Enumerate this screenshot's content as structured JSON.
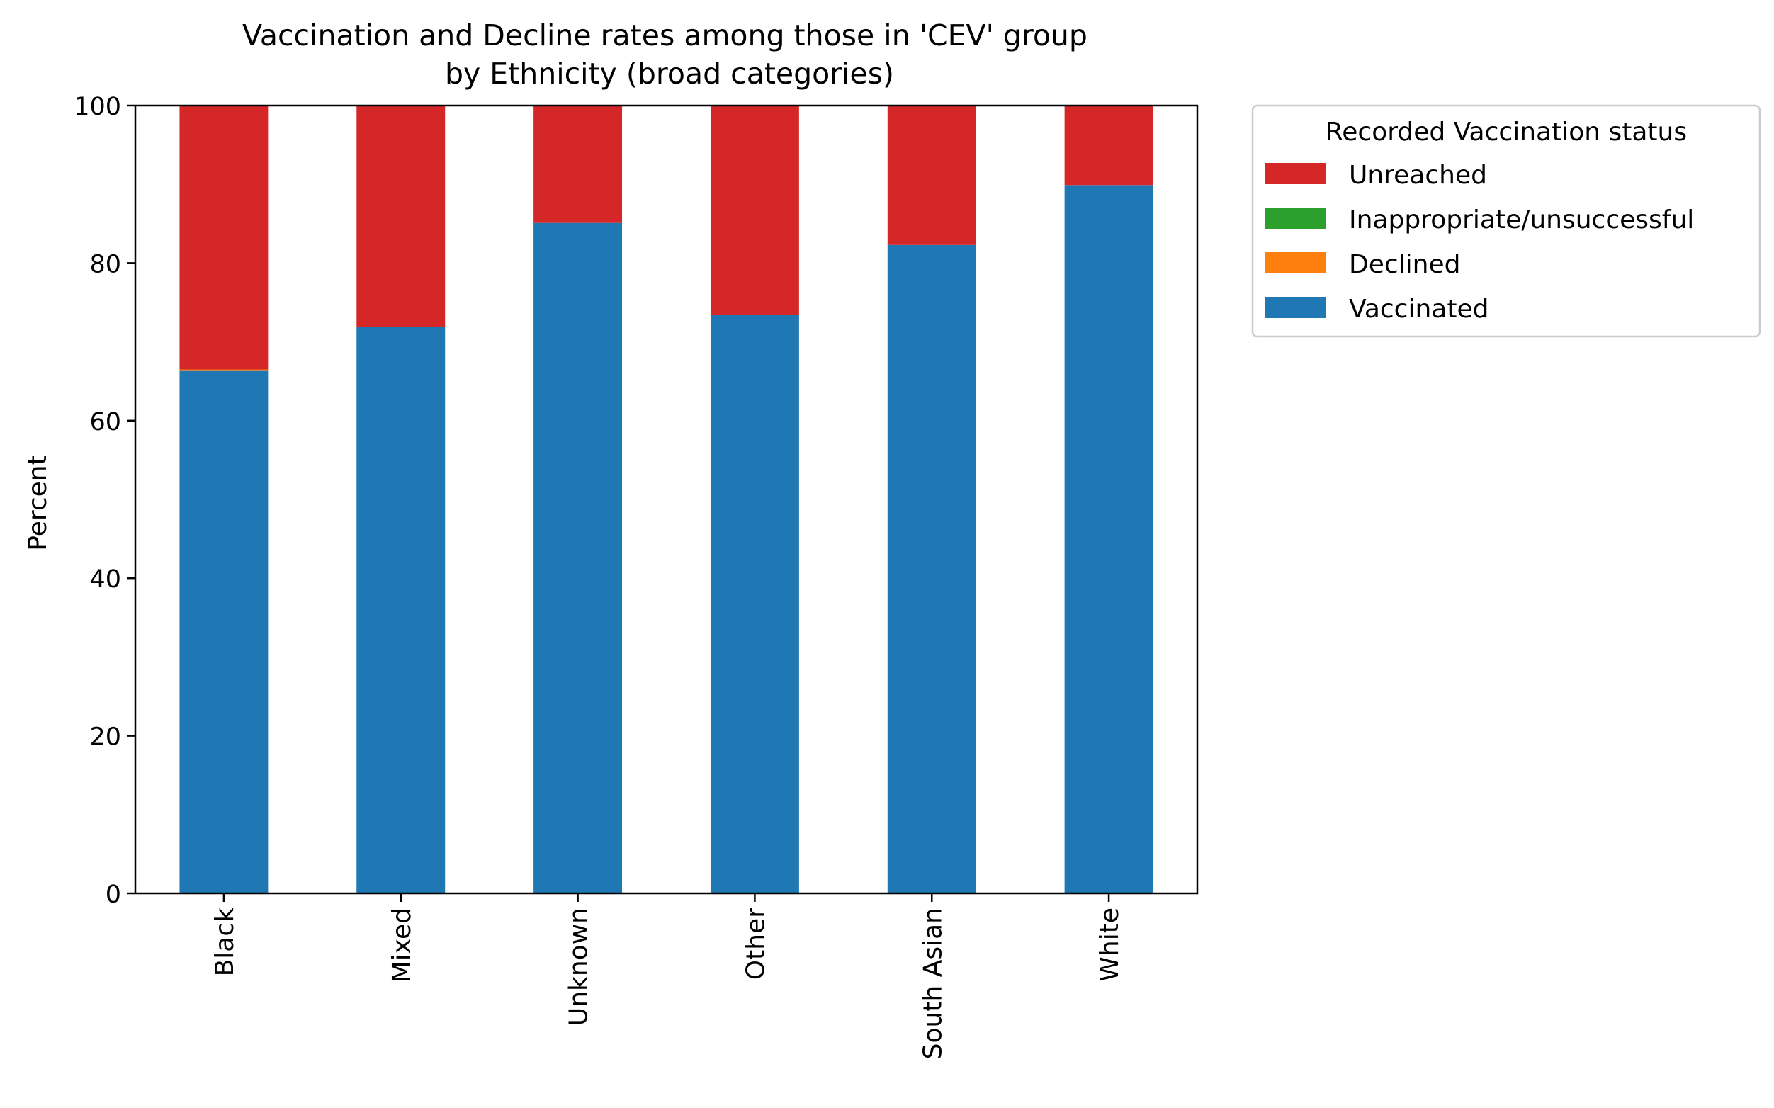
{
  "chart_data": {
    "type": "bar",
    "stacked": true,
    "title": "Vaccination and Decline rates among those in 'CEV' group\nby Ethnicity (broad categories)",
    "xlabel": "",
    "ylabel": "Percent",
    "ylim": [
      0,
      100
    ],
    "yticks": [
      0,
      20,
      40,
      60,
      80,
      100
    ],
    "grid": false,
    "categories": [
      "Black",
      "Mixed",
      "Unknown",
      "Other",
      "South Asian",
      "White"
    ],
    "series": [
      {
        "name": "Vaccinated",
        "color": "#1f77b4",
        "values": [
          66.4,
          71.9,
          85.1,
          73.4,
          82.3,
          89.9
        ]
      },
      {
        "name": "Declined",
        "color": "#ff7f0e",
        "values": [
          0.1,
          0.0,
          0.0,
          0.0,
          0.0,
          0.0
        ]
      },
      {
        "name": "Inappropriate/unsuccessful",
        "color": "#2ca02c",
        "values": [
          0.0,
          0.0,
          0.0,
          0.0,
          0.0,
          0.0
        ]
      },
      {
        "name": "Unreached",
        "color": "#d62728",
        "values": [
          33.5,
          28.1,
          14.9,
          26.6,
          17.7,
          10.1
        ]
      }
    ],
    "legend": {
      "title": "Recorded Vaccination status",
      "placement": "upper right, outside plot",
      "entries": [
        "Unreached",
        "Inappropriate/unsuccessful",
        "Declined",
        "Vaccinated"
      ]
    }
  }
}
